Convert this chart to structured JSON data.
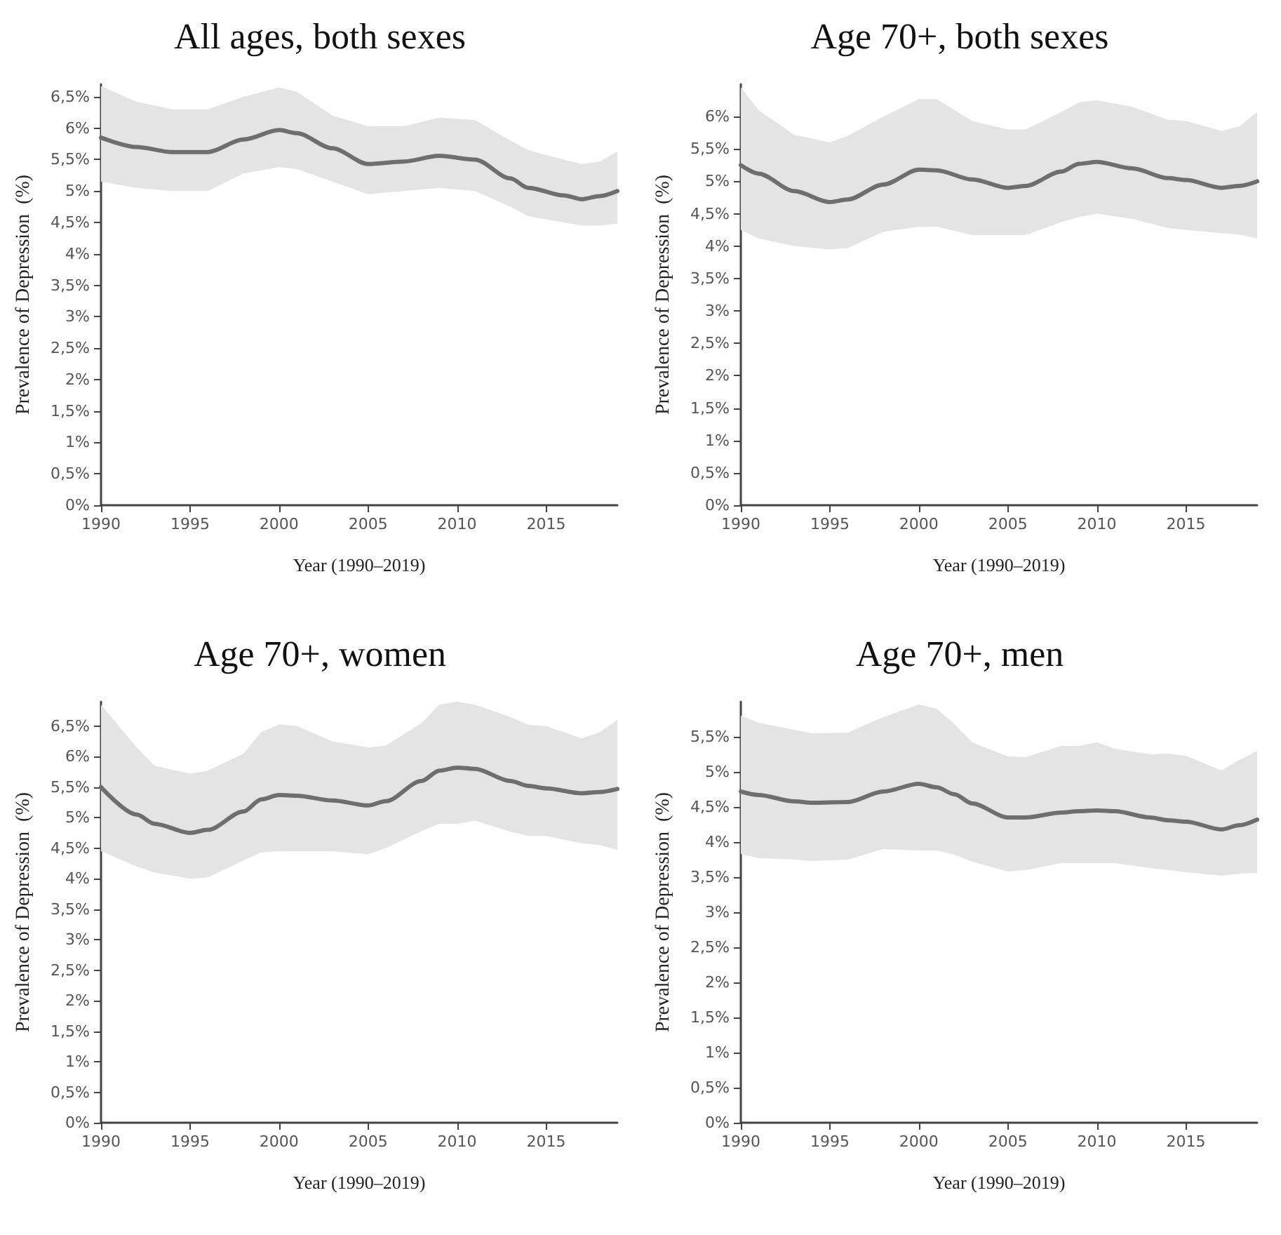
{
  "chart_data": [
    {
      "type": "line",
      "title": "All ages, both sexes",
      "xlabel": "Year (1990–2019)",
      "ylabel": "Prevalence of Depression  (%)",
      "grid": false,
      "marker": "none",
      "line_style": "solid",
      "xlim": [
        1990,
        2019
      ],
      "xticks": [
        1990,
        1995,
        2000,
        2005,
        2010,
        2015
      ],
      "ylim": [
        0,
        6.7
      ],
      "yticks": [
        {
          "value": 0,
          "label": "0%"
        },
        {
          "value": 0.5,
          "label": "0,5%"
        },
        {
          "value": 1,
          "label": "1%"
        },
        {
          "value": 1.5,
          "label": "1,5%"
        },
        {
          "value": 2,
          "label": "2%"
        },
        {
          "value": 2.5,
          "label": "2,5%"
        },
        {
          "value": 3,
          "label": "3%"
        },
        {
          "value": 3.5,
          "label": "3,5%"
        },
        {
          "value": 4,
          "label": "4%"
        },
        {
          "value": 4.5,
          "label": "4,5%"
        },
        {
          "value": 5,
          "label": "5%"
        },
        {
          "value": 5.5,
          "label": "5,5%"
        },
        {
          "value": 6,
          "label": "6%"
        },
        {
          "value": 6.5,
          "label": "6,5%"
        }
      ],
      "series": [
        {
          "color": "#6e6e6e",
          "x": [
            1990,
            1992,
            1994,
            1996,
            1998,
            2000,
            2001,
            2003,
            2005,
            2007,
            2009,
            2011,
            2013,
            2014,
            2016,
            2017,
            2018,
            2019
          ],
          "values": [
            5.85,
            5.7,
            5.62,
            5.62,
            5.82,
            5.97,
            5.92,
            5.68,
            5.43,
            5.47,
            5.56,
            5.5,
            5.2,
            5.05,
            4.93,
            4.87,
            4.92,
            5.0
          ],
          "upper": [
            6.67,
            6.42,
            6.3,
            6.3,
            6.5,
            6.65,
            6.58,
            6.2,
            6.03,
            6.03,
            6.17,
            6.13,
            5.8,
            5.65,
            5.5,
            5.43,
            5.47,
            5.63
          ],
          "lower": [
            5.15,
            5.05,
            5.0,
            5.0,
            5.28,
            5.38,
            5.35,
            5.15,
            4.95,
            5.0,
            5.05,
            5.0,
            4.75,
            4.6,
            4.5,
            4.45,
            4.45,
            4.48
          ]
        }
      ]
    },
    {
      "type": "line",
      "title": "Age 70+, both sexes",
      "xlabel": "Year (1990–2019)",
      "ylabel": "Prevalence of Depression  (%)",
      "grid": false,
      "marker": "none",
      "line_style": "solid",
      "xlim": [
        1990,
        2019
      ],
      "xticks": [
        1990,
        1995,
        2000,
        2005,
        2010,
        2015
      ],
      "ylim": [
        0,
        6.5
      ],
      "yticks": [
        {
          "value": 0,
          "label": "0%"
        },
        {
          "value": 0.5,
          "label": "0,5%"
        },
        {
          "value": 1,
          "label": "1%"
        },
        {
          "value": 1.5,
          "label": "1,5%"
        },
        {
          "value": 2,
          "label": "2%"
        },
        {
          "value": 2.5,
          "label": "2,5%"
        },
        {
          "value": 3,
          "label": "3%"
        },
        {
          "value": 3.5,
          "label": "3,5%"
        },
        {
          "value": 4,
          "label": "4%"
        },
        {
          "value": 4.5,
          "label": "4,5%"
        },
        {
          "value": 5,
          "label": "5%"
        },
        {
          "value": 5.5,
          "label": "5,5%"
        },
        {
          "value": 6,
          "label": "6%"
        }
      ],
      "series": [
        {
          "color": "#6e6e6e",
          "x": [
            1990,
            1991,
            1993,
            1995,
            1996,
            1998,
            2000,
            2001,
            2003,
            2005,
            2006,
            2008,
            2009,
            2010,
            2012,
            2014,
            2015,
            2017,
            2018,
            2019
          ],
          "values": [
            5.25,
            5.12,
            4.85,
            4.68,
            4.72,
            4.95,
            5.18,
            5.17,
            5.03,
            4.9,
            4.93,
            5.15,
            5.27,
            5.3,
            5.2,
            5.05,
            5.02,
            4.9,
            4.93,
            5.0
          ],
          "upper": [
            6.45,
            6.1,
            5.72,
            5.6,
            5.7,
            6.0,
            6.27,
            6.27,
            5.93,
            5.8,
            5.8,
            6.07,
            6.22,
            6.25,
            6.15,
            5.95,
            5.93,
            5.78,
            5.85,
            6.07
          ],
          "lower": [
            4.25,
            4.12,
            4.0,
            3.95,
            3.97,
            4.22,
            4.3,
            4.3,
            4.17,
            4.17,
            4.17,
            4.37,
            4.45,
            4.5,
            4.42,
            4.28,
            4.25,
            4.2,
            4.18,
            4.12
          ]
        }
      ]
    },
    {
      "type": "line",
      "title": "Age 70+, women",
      "xlabel": "Year (1990–2019)",
      "ylabel": "Prevalence of Depression  (%)",
      "grid": false,
      "marker": "none",
      "line_style": "solid",
      "xlim": [
        1990,
        2019
      ],
      "xticks": [
        1990,
        1995,
        2000,
        2005,
        2010,
        2015
      ],
      "ylim": [
        0,
        6.9
      ],
      "yticks": [
        {
          "value": 0,
          "label": "0%"
        },
        {
          "value": 0.5,
          "label": "0,5%"
        },
        {
          "value": 1,
          "label": "1%"
        },
        {
          "value": 1.5,
          "label": "1,5%"
        },
        {
          "value": 2,
          "label": "2%"
        },
        {
          "value": 2.5,
          "label": "2,5%"
        },
        {
          "value": 3,
          "label": "3%"
        },
        {
          "value": 3.5,
          "label": "3,5%"
        },
        {
          "value": 4,
          "label": "4%"
        },
        {
          "value": 4.5,
          "label": "4,5%"
        },
        {
          "value": 5,
          "label": "5%"
        },
        {
          "value": 5.5,
          "label": "5,5%"
        },
        {
          "value": 6,
          "label": "6%"
        },
        {
          "value": 6.5,
          "label": "6,5%"
        }
      ],
      "series": [
        {
          "color": "#6e6e6e",
          "x": [
            1990,
            1992,
            1993,
            1995,
            1996,
            1998,
            1999,
            2000,
            2001,
            2003,
            2005,
            2006,
            2008,
            2009,
            2010,
            2011,
            2013,
            2014,
            2015,
            2017,
            2018,
            2019
          ],
          "values": [
            5.5,
            5.05,
            4.9,
            4.75,
            4.8,
            5.1,
            5.3,
            5.37,
            5.36,
            5.28,
            5.2,
            5.27,
            5.6,
            5.77,
            5.82,
            5.8,
            5.6,
            5.52,
            5.48,
            5.4,
            5.42,
            5.47
          ],
          "upper": [
            6.85,
            6.15,
            5.85,
            5.72,
            5.77,
            6.05,
            6.4,
            6.53,
            6.5,
            6.25,
            6.15,
            6.18,
            6.55,
            6.85,
            6.9,
            6.85,
            6.65,
            6.52,
            6.5,
            6.3,
            6.4,
            6.6
          ],
          "lower": [
            4.45,
            4.2,
            4.1,
            4.0,
            4.02,
            4.3,
            4.43,
            4.45,
            4.45,
            4.45,
            4.4,
            4.5,
            4.78,
            4.9,
            4.9,
            4.95,
            4.77,
            4.7,
            4.7,
            4.58,
            4.55,
            4.47
          ]
        }
      ]
    },
    {
      "type": "line",
      "title": "Age 70+, men",
      "xlabel": "Year (1990–2019)",
      "ylabel": "Prevalence of Depression  (%)",
      "grid": false,
      "marker": "none",
      "line_style": "solid",
      "xlim": [
        1990,
        2019
      ],
      "xticks": [
        1990,
        1995,
        2000,
        2005,
        2010,
        2015
      ],
      "ylim": [
        0,
        6
      ],
      "yticks": [
        {
          "value": 0,
          "label": "0%"
        },
        {
          "value": 0.5,
          "label": "0,5%"
        },
        {
          "value": 1,
          "label": "1%"
        },
        {
          "value": 1.5,
          "label": "1,5%"
        },
        {
          "value": 2,
          "label": "2%"
        },
        {
          "value": 2.5,
          "label": "2,5%"
        },
        {
          "value": 3,
          "label": "3%"
        },
        {
          "value": 3.5,
          "label": "3,5%"
        },
        {
          "value": 4,
          "label": "4%"
        },
        {
          "value": 4.5,
          "label": "4,5%"
        },
        {
          "value": 5,
          "label": "5%"
        },
        {
          "value": 5.5,
          "label": "5,5%"
        }
      ],
      "series": [
        {
          "color": "#6e6e6e",
          "x": [
            1990,
            1991,
            1993,
            1994,
            1996,
            1998,
            2000,
            2001,
            2002,
            2003,
            2005,
            2006,
            2008,
            2009,
            2010,
            2011,
            2013,
            2014,
            2015,
            2017,
            2018,
            2019
          ],
          "values": [
            4.72,
            4.67,
            4.58,
            4.56,
            4.57,
            4.72,
            4.83,
            4.78,
            4.68,
            4.55,
            4.35,
            4.35,
            4.42,
            4.44,
            4.45,
            4.44,
            4.35,
            4.31,
            4.29,
            4.18,
            4.24,
            4.32
          ],
          "upper": [
            5.8,
            5.7,
            5.6,
            5.55,
            5.56,
            5.78,
            5.96,
            5.9,
            5.68,
            5.42,
            5.22,
            5.21,
            5.37,
            5.37,
            5.42,
            5.33,
            5.25,
            5.26,
            5.23,
            5.02,
            5.17,
            5.3
          ],
          "lower": [
            3.83,
            3.77,
            3.75,
            3.73,
            3.75,
            3.9,
            3.88,
            3.88,
            3.82,
            3.72,
            3.58,
            3.6,
            3.7,
            3.7,
            3.7,
            3.7,
            3.63,
            3.6,
            3.57,
            3.52,
            3.55,
            3.56
          ]
        }
      ]
    }
  ]
}
